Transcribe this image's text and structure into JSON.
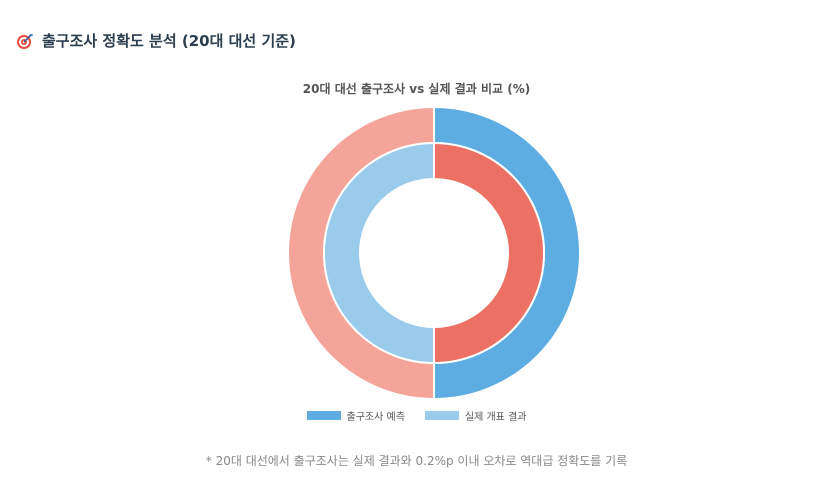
{
  "header": {
    "title": "출구조사 정확도 분석 (20대 대선 기준)",
    "icon": "target-dart-icon"
  },
  "chart_data": {
    "type": "doughnut",
    "title": "20대 대선 출구조사 vs 실제 결과 비교 (%)",
    "series": [
      {
        "name": "출구조사 예측",
        "values": [
          50,
          50
        ],
        "colors": [
          "#5DADE2",
          "#F5A49A"
        ]
      },
      {
        "name": "실제 개표 결과",
        "values": [
          50,
          50
        ],
        "colors": [
          "#EC7063",
          "#9ACBEB"
        ]
      }
    ],
    "legend": [
      {
        "label": "출구조사 예측",
        "color": "#5DADE2"
      },
      {
        "label": "실제 개표 결과",
        "color": "#9ACBEB"
      }
    ],
    "legend_position": "bottom"
  },
  "footnote": "* 20대 대선에서 출구조사는 실제 결과와 0.2%p 이내 오차로 역대급 정확도를 기록"
}
